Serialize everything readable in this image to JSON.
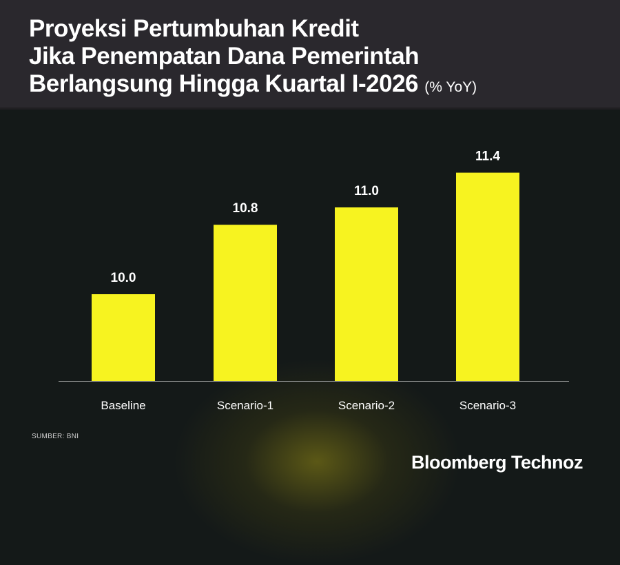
{
  "title_lines": [
    "Proyeksi Pertumbuhan Kredit",
    "Jika Penempatan Dana Pemerintah",
    "Berlangsung Hingga Kuartal I-2026"
  ],
  "unit": "(% YoY)",
  "source": "SUMBER: BNI",
  "brand": "Bloomberg Technoz",
  "colors": {
    "bar": "#f7f320",
    "header": "#2a282d",
    "background": "#141918"
  },
  "chart_data": {
    "type": "bar",
    "title": "Proyeksi Pertumbuhan Kredit Jika Penempatan Dana Pemerintah Berlangsung Hingga Kuartal I-2026",
    "ylabel": "% YoY",
    "xlabel": "",
    "categories": [
      "Baseline",
      "Scenario-1",
      "Scenario-2",
      "Scenario-3"
    ],
    "values": [
      10.0,
      10.8,
      11.0,
      11.4
    ],
    "labels": [
      "10.0",
      "10.8",
      "11.0",
      "11.4"
    ],
    "ylim": [
      9.0,
      11.6
    ],
    "grid": false
  }
}
